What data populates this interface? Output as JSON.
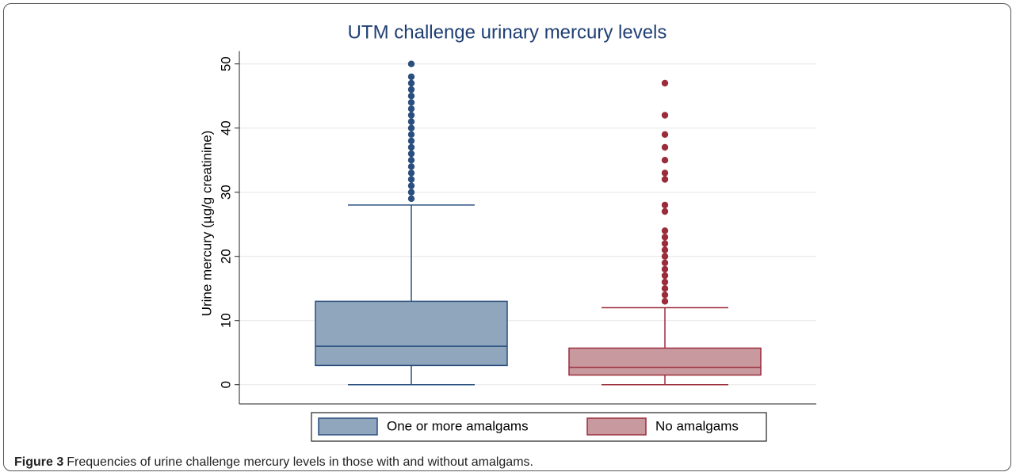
{
  "chart_data": {
    "type": "box",
    "title": "UTM challenge urinary mercury levels",
    "y_label": "Urine mercury (µg/g creatinine)",
    "ylim": [
      -3,
      52
    ],
    "yticks": [
      0,
      10,
      20,
      30,
      40,
      50
    ],
    "grid": true,
    "legend": "bottom",
    "series": [
      {
        "name": "One or more amalgams",
        "color": "#2a4f7e",
        "fill": "#8fa6bd",
        "whisker_low": 0,
        "q1": 3,
        "median": 6,
        "q3": 13,
        "whisker_high": 28,
        "outliers": [
          29,
          30,
          31,
          32,
          33,
          34,
          35,
          36,
          37,
          38,
          39,
          40,
          41,
          42,
          43,
          44,
          45,
          46,
          47,
          48,
          50
        ]
      },
      {
        "name": "No amalgams",
        "color": "#9b2d3a",
        "fill": "#c89aa0",
        "whisker_low": 0,
        "q1": 1.5,
        "median": 2.7,
        "q3": 5.7,
        "whisker_high": 12,
        "outliers": [
          13,
          14,
          15,
          16,
          17,
          18,
          19,
          20,
          21,
          22,
          23,
          24,
          27,
          28,
          32,
          33,
          35,
          37,
          39,
          42,
          47
        ]
      }
    ]
  },
  "caption": {
    "label": "Figure 3",
    "text": "Frequencies of urine challenge mercury levels in those with and without amalgams."
  }
}
